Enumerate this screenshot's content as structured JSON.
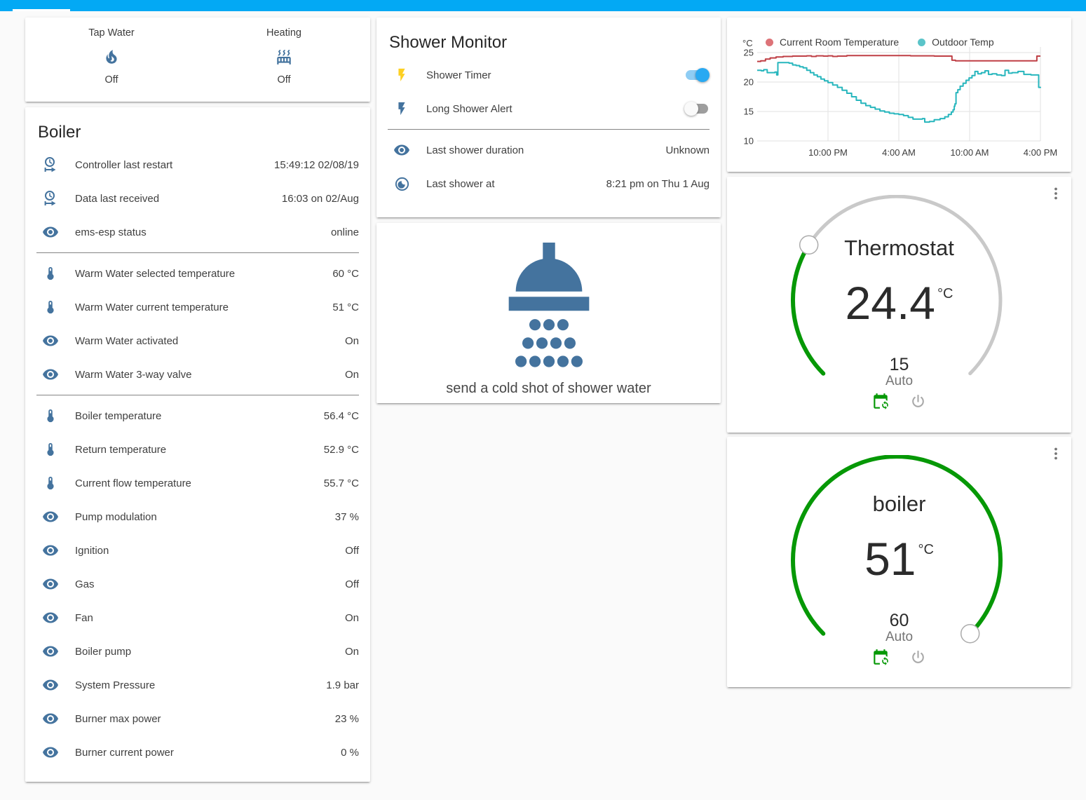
{
  "header": {
    "accent_color": "#03a9f4"
  },
  "colors": {
    "icon": "#44739e",
    "active_green": "#069806",
    "toggle_on": "#29a9f2",
    "divider": "#848484"
  },
  "glance_card": {
    "items": [
      {
        "label": "Tap Water",
        "icon": "fire",
        "state": "Off"
      },
      {
        "label": "Heating",
        "icon": "radiator",
        "state": "Off"
      }
    ]
  },
  "boiler_card": {
    "title": "Boiler",
    "rows": [
      {
        "icon": "clock-start",
        "label": "Controller last restart",
        "value": "15:49:12 02/08/19"
      },
      {
        "icon": "clock-start",
        "label": "Data last received",
        "value": "16:03 on 02/Aug"
      },
      {
        "icon": "eye",
        "label": "ems-esp status",
        "value": "online",
        "divider_after": true
      },
      {
        "icon": "thermometer",
        "label": "Warm Water selected temperature",
        "value": "60 °C"
      },
      {
        "icon": "thermometer",
        "label": "Warm Water current temperature",
        "value": "51 °C"
      },
      {
        "icon": "eye",
        "label": "Warm Water activated",
        "value": "On"
      },
      {
        "icon": "eye",
        "label": "Warm Water 3-way valve",
        "value": "On",
        "divider_after": true
      },
      {
        "icon": "thermometer",
        "label": "Boiler temperature",
        "value": "56.4 °C"
      },
      {
        "icon": "thermometer",
        "label": "Return temperature",
        "value": "52.9 °C"
      },
      {
        "icon": "thermometer",
        "label": "Current flow temperature",
        "value": "55.7 °C"
      },
      {
        "icon": "eye",
        "label": "Pump modulation",
        "value": "37 %"
      },
      {
        "icon": "eye",
        "label": "Ignition",
        "value": "Off"
      },
      {
        "icon": "eye",
        "label": "Gas",
        "value": "Off"
      },
      {
        "icon": "eye",
        "label": "Fan",
        "value": "On"
      },
      {
        "icon": "eye",
        "label": "Boiler pump",
        "value": "On"
      },
      {
        "icon": "eye",
        "label": "System Pressure",
        "value": "1.9 bar"
      },
      {
        "icon": "eye",
        "label": "Burner max power",
        "value": "23 %"
      },
      {
        "icon": "eye",
        "label": "Burner current power",
        "value": "0 %"
      }
    ]
  },
  "shower_monitor": {
    "title": "Shower Monitor",
    "rows": [
      {
        "icon": "flash",
        "icon_color": "#fdd022",
        "label": "Shower Timer",
        "type": "toggle",
        "state": "on"
      },
      {
        "icon": "flash",
        "icon_color": "#44739e",
        "label": "Long Shower Alert",
        "type": "toggle",
        "state": "off",
        "divider_after": true
      },
      {
        "icon": "eye",
        "label": "Last shower duration",
        "value": "Unknown"
      },
      {
        "icon": "moon",
        "label": "Last shower at",
        "value": "8:21 pm on Thu 1 Aug"
      }
    ]
  },
  "shower_action": {
    "icon": "shower-head",
    "label": "send a cold shot of shower water"
  },
  "chart_data": {
    "type": "line",
    "title": "",
    "xlabel": "",
    "ylabel": "°C",
    "ylim": [
      10,
      25
    ],
    "yticks": [
      25,
      20,
      15,
      10
    ],
    "x_range_hours": [
      0,
      24
    ],
    "x_ticks": [
      {
        "t": 6,
        "label": "10:00 PM"
      },
      {
        "t": 12,
        "label": "4:00 AM"
      },
      {
        "t": 18,
        "label": "10:00 AM"
      },
      {
        "t": 24,
        "label": "4:00 PM"
      }
    ],
    "grid": true,
    "legend_position": "top",
    "series": [
      {
        "name": "Current Room Temperature",
        "color": "#bf3f45",
        "dot_color": "#dd7378",
        "points": [
          [
            0,
            23.5
          ],
          [
            0.3,
            23.6
          ],
          [
            0.7,
            23.9
          ],
          [
            1.1,
            24.1
          ],
          [
            1.6,
            24.25
          ],
          [
            2.2,
            24.35
          ],
          [
            3.0,
            24.4
          ],
          [
            4.2,
            24.45
          ],
          [
            4.6,
            24.35
          ],
          [
            5.0,
            24.45
          ],
          [
            5.6,
            24.4
          ],
          [
            6.0,
            24.45
          ],
          [
            6.4,
            24.35
          ],
          [
            6.8,
            24.4
          ],
          [
            7.6,
            24.5
          ],
          [
            9.0,
            24.5
          ],
          [
            11.0,
            24.5
          ],
          [
            13.0,
            24.45
          ],
          [
            15.0,
            24.4
          ],
          [
            16.2,
            24.4
          ],
          [
            16.5,
            23.7
          ],
          [
            16.8,
            23.6
          ],
          [
            18.0,
            23.6
          ],
          [
            20.0,
            23.6
          ],
          [
            22.0,
            23.6
          ],
          [
            23.6,
            23.6
          ],
          [
            23.7,
            24.4
          ],
          [
            24,
            24.4
          ]
        ]
      },
      {
        "name": "Outdoor Temp",
        "color": "#27b6bd",
        "dot_color": "#5bc4c9",
        "points": [
          [
            0,
            22.0
          ],
          [
            0.35,
            21.9
          ],
          [
            0.55,
            22.1
          ],
          [
            0.85,
            21.6
          ],
          [
            1.3,
            21.6
          ],
          [
            1.5,
            21.7
          ],
          [
            1.65,
            21.2
          ],
          [
            1.75,
            23.3
          ],
          [
            2.7,
            23.2
          ],
          [
            3.0,
            22.9
          ],
          [
            3.3,
            22.8
          ],
          [
            3.6,
            22.6
          ],
          [
            3.9,
            22.4
          ],
          [
            4.2,
            22.0
          ],
          [
            4.5,
            21.6
          ],
          [
            4.8,
            21.2
          ],
          [
            5.1,
            20.9
          ],
          [
            5.4,
            20.5
          ],
          [
            5.7,
            20.2
          ],
          [
            6.0,
            19.9
          ],
          [
            6.4,
            19.5
          ],
          [
            6.8,
            19.1
          ],
          [
            7.2,
            18.6
          ],
          [
            7.6,
            18.1
          ],
          [
            8.0,
            17.5
          ],
          [
            8.4,
            16.9
          ],
          [
            8.8,
            16.4
          ],
          [
            9.2,
            16.0
          ],
          [
            9.6,
            15.7
          ],
          [
            10.0,
            15.4
          ],
          [
            10.4,
            15.1
          ],
          [
            10.8,
            14.9
          ],
          [
            11.2,
            14.7
          ],
          [
            11.6,
            14.6
          ],
          [
            12.0,
            14.5
          ],
          [
            12.4,
            14.3
          ],
          [
            12.8,
            14.0
          ],
          [
            13.2,
            13.7
          ],
          [
            13.7,
            13.7
          ],
          [
            14.0,
            13.8
          ],
          [
            14.2,
            13.2
          ],
          [
            14.6,
            13.3
          ],
          [
            15.0,
            13.6
          ],
          [
            15.5,
            13.8
          ],
          [
            15.9,
            14.1
          ],
          [
            16.2,
            14.5
          ],
          [
            16.45,
            14.9
          ],
          [
            16.6,
            15.3
          ],
          [
            16.7,
            15.9
          ],
          [
            16.76,
            16.3
          ],
          [
            16.85,
            18.2
          ],
          [
            17.0,
            18.7
          ],
          [
            17.2,
            19.3
          ],
          [
            17.45,
            19.8
          ],
          [
            17.7,
            20.3
          ],
          [
            17.95,
            20.7
          ],
          [
            18.2,
            21.1
          ],
          [
            18.45,
            21.8
          ],
          [
            18.7,
            21.4
          ],
          [
            19.0,
            21.6
          ],
          [
            19.3,
            21.9
          ],
          [
            19.6,
            21.3
          ],
          [
            19.9,
            21.4
          ],
          [
            20.3,
            21.2
          ],
          [
            20.7,
            21.1
          ],
          [
            21.0,
            22.0
          ],
          [
            21.3,
            21.5
          ],
          [
            21.6,
            21.6
          ],
          [
            22.1,
            21.8
          ],
          [
            22.6,
            21.3
          ],
          [
            23.2,
            21.2
          ],
          [
            23.85,
            19.1
          ],
          [
            24,
            19.0
          ]
        ]
      }
    ]
  },
  "dials": [
    {
      "name": "Thermostat",
      "current": "24.4",
      "unit": "°C",
      "target": "15",
      "mode": "Auto",
      "min": 7,
      "max": 35,
      "value": 15,
      "active_color": "#069806",
      "icons": [
        "calendar-sync",
        "power"
      ],
      "menu_icon": "dots-vertical"
    },
    {
      "name": "boiler",
      "current": "51",
      "unit": "°C",
      "target": "60",
      "mode": "Auto",
      "min": 30,
      "max": 60,
      "value": 60,
      "active_color": "#069806",
      "icons": [
        "calendar-sync",
        "power"
      ],
      "menu_icon": "dots-vertical"
    }
  ]
}
